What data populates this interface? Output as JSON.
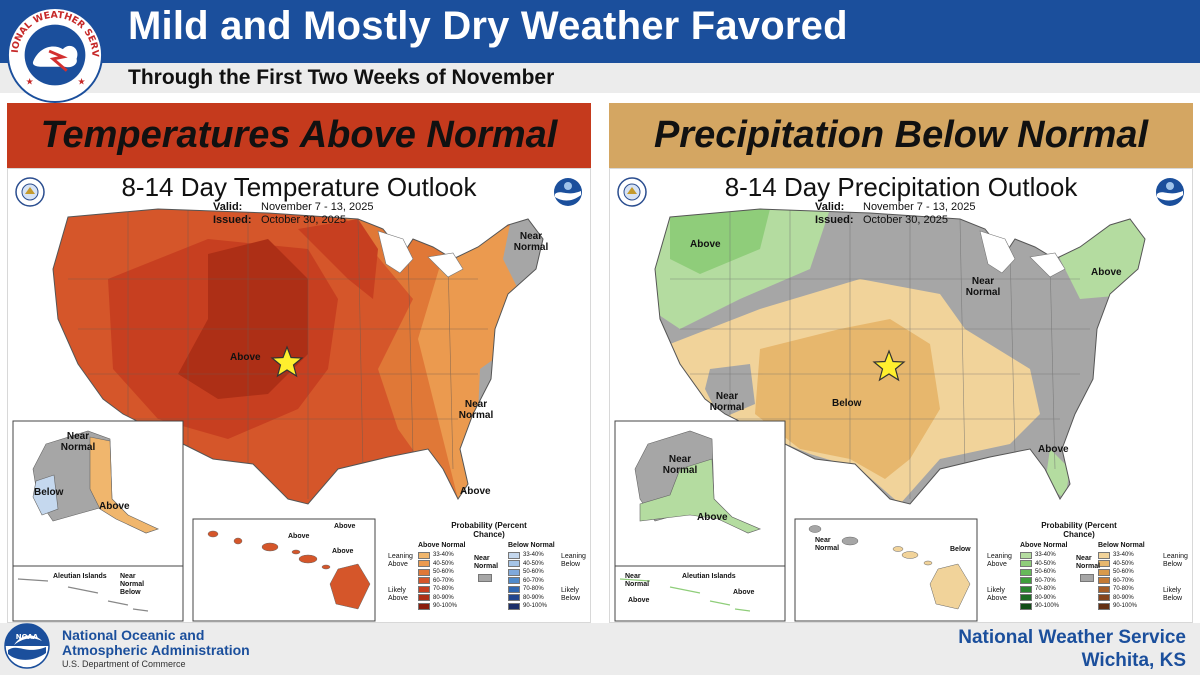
{
  "header": {
    "title": "Mild and Mostly Dry Weather Favored",
    "subtitle": "Through the First Two Weeks of November",
    "seal_text": "NATIONAL WEATHER SERVICE"
  },
  "temperature": {
    "banner": "Temperatures Above Normal",
    "map_title": "8-14 Day Temperature Outlook",
    "valid_label": "Valid:",
    "valid_value": "November 7 - 13, 2025",
    "issued_label": "Issued:",
    "issued_value": "October 30, 2025",
    "labels": {
      "above_center": "Above",
      "near_normal_ne": "Near Normal",
      "near_normal_se": "Near Normal",
      "above_fl": "Above",
      "ak_near_normal": "Near Normal",
      "ak_below": "Below",
      "ak_above": "Above",
      "aleutian": "Aleutian Islands",
      "aleutian_near": "Near Normal",
      "aleutian_below": "Below",
      "hi_above_1": "Above",
      "hi_above_2": "Above",
      "hi_above_3": "Above"
    },
    "legend": {
      "title": "Probability (Percent Chance)",
      "above_header": "Above Normal",
      "below_header": "Below Normal",
      "near_label": "Near Normal",
      "leaning_above": "Leaning Above",
      "likely_above": "Likely Above",
      "leaning_below": "Leaning Below",
      "likely_below": "Likely Below",
      "ranges": [
        "33-40%",
        "40-50%",
        "50-60%",
        "60-70%",
        "70-80%",
        "80-90%",
        "90-100%"
      ],
      "above_colors": [
        "#f0b66d",
        "#eb9a4f",
        "#e07837",
        "#d5562a",
        "#c73f20",
        "#ad2f16",
        "#8a1d0d"
      ],
      "below_colors": [
        "#c5d8ee",
        "#a5c4e6",
        "#7fa9dc",
        "#4f8acb",
        "#2f67b2",
        "#22468e",
        "#1b2e68"
      ]
    }
  },
  "precipitation": {
    "banner": "Precipitation Below Normal",
    "map_title": "8-14 Day Precipitation Outlook",
    "valid_label": "Valid:",
    "valid_value": "November 7 - 13, 2025",
    "issued_label": "Issued:",
    "issued_value": "October 30, 2025",
    "labels": {
      "above_nw": "Above",
      "near_normal_ne": "Near Normal",
      "above_ne": "Above",
      "near_normal_west": "Near Normal",
      "below_center": "Below",
      "above_fl": "Above",
      "ak_near_normal": "Near Normal",
      "ak_above": "Above",
      "aleutian": "Aleutian Islands",
      "aleutian_near": "Near Normal",
      "aleutian_above_1": "Above",
      "aleutian_above_2": "Above",
      "hi_near_normal": "Near Normal",
      "hi_below": "Below"
    },
    "legend": {
      "title": "Probability (Percent Chance)",
      "above_header": "Above Normal",
      "below_header": "Below Normal",
      "near_label": "Near Normal",
      "leaning_above": "Leaning Above",
      "likely_above": "Likely Above",
      "leaning_below": "Leaning Below",
      "likely_below": "Likely Below",
      "ranges": [
        "33-40%",
        "40-50%",
        "50-60%",
        "60-70%",
        "70-80%",
        "80-90%",
        "90-100%"
      ],
      "above_colors": [
        "#b4dca0",
        "#8fcd7a",
        "#66b95a",
        "#3f9e3c",
        "#2a8530",
        "#1d6b24",
        "#124d18"
      ],
      "below_colors": [
        "#f1d39a",
        "#e7b76d",
        "#d99a4b",
        "#c47a35",
        "#a65d27",
        "#85441c",
        "#622f13"
      ]
    }
  },
  "footer": {
    "noaa_name_1": "National Oceanic and",
    "noaa_name_2": "Atmospheric Administration",
    "noaa_dept": "U.S. Department of Commerce",
    "office_line_1": "National Weather Service",
    "office_line_2": "Wichita, KS"
  },
  "colors": {
    "header_blue": "#1b4f9c",
    "temp_banner": "#c53a1d",
    "precip_banner": "#d4a662",
    "near_normal_gray": "#a6a6a6",
    "star": "#ffef2e"
  }
}
